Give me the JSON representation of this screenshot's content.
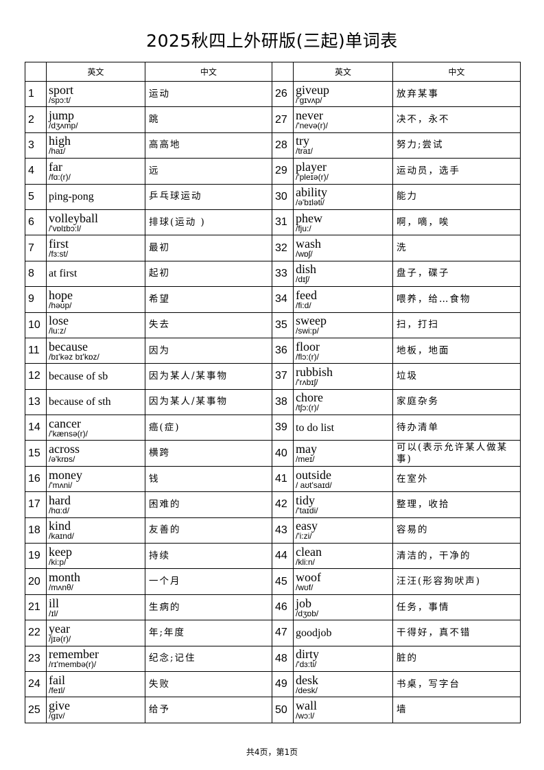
{
  "title": "2025秋四上外研版(三起)单词表",
  "headers": {
    "en": "英文",
    "cn": "中文"
  },
  "words": [
    {
      "n": "1",
      "w": "sport",
      "p": "/spɔ:t/",
      "c": "运动"
    },
    {
      "n": "2",
      "w": "jump",
      "p": "/dʒʌmp/",
      "c": "跳"
    },
    {
      "n": "3",
      "w": "high",
      "p": "/haɪ/",
      "c": "高高地"
    },
    {
      "n": "4",
      "w": "far",
      "p": "/fɑ:(r)/",
      "c": "远"
    },
    {
      "n": "5",
      "w": "ping-pong",
      "p": "",
      "c": "乒乓球运动"
    },
    {
      "n": "6",
      "w": "volleyball",
      "p": "/'vɒlɪbɔ:l/",
      "c": "排球(运动 )"
    },
    {
      "n": "7",
      "w": "first",
      "p": "/fɜ:st/",
      "c": "最初"
    },
    {
      "n": "8",
      "w": "at first",
      "p": "",
      "c": "起初"
    },
    {
      "n": "9",
      "w": "hope",
      "p": "/həʊp/",
      "c": "希望"
    },
    {
      "n": "10",
      "w": "lose",
      "p": "/lu:z/",
      "c": "失去"
    },
    {
      "n": "11",
      "w": "because",
      "p": "/bɪ'kəz bɪ'kɒz/",
      "c": "因为"
    },
    {
      "n": "12",
      "w": "because of sb",
      "p": "",
      "c": "因为某人/某事物"
    },
    {
      "n": "13",
      "w": "because of sth",
      "p": "",
      "c": "因为某人/某事物"
    },
    {
      "n": "14",
      "w": "cancer",
      "p": "/'kænsə(r)/",
      "c": "癌(症)"
    },
    {
      "n": "15",
      "w": "across",
      "p": "/ə'krɒs/",
      "c": "横跨"
    },
    {
      "n": "16",
      "w": "money",
      "p": "/'mʌni/",
      "c": "钱"
    },
    {
      "n": "17",
      "w": "hard",
      "p": "/hɑ:d/",
      "c": "困难的"
    },
    {
      "n": "18",
      "w": "kind",
      "p": "/kaɪnd/",
      "c": "友善的"
    },
    {
      "n": "19",
      "w": "keep",
      "p": "/ki:p/",
      "c": "持续"
    },
    {
      "n": "20",
      "w": "month",
      "p": "/mʌnθ/",
      "c": "一个月"
    },
    {
      "n": "21",
      "w": "ill",
      "p": "/ɪl/",
      "c": "生病的"
    },
    {
      "n": "22",
      "w": "year",
      "p": "/jɪə(r)/",
      "c": "年;年度"
    },
    {
      "n": "23",
      "w": "remember",
      "p": "/rɪ'membə(r)/",
      "c": "纪念;记住"
    },
    {
      "n": "24",
      "w": "fail",
      "p": "/feɪl/",
      "c": "失败"
    },
    {
      "n": "25",
      "w": "give",
      "p": "/gɪv/",
      "c": "给予"
    },
    {
      "n": "26",
      "w": "giveup",
      "p": "/'gɪvʌp/",
      "c": "放弃某事"
    },
    {
      "n": "27",
      "w": "never",
      "p": "/'nevə(r)/",
      "c": "决不，永不"
    },
    {
      "n": "28",
      "w": "try",
      "p": "/traɪ/",
      "c": "努力;尝试"
    },
    {
      "n": "29",
      "w": "player",
      "p": "/'pleɪə(r)/",
      "c": "运动员，选手"
    },
    {
      "n": "30",
      "w": "ability",
      "p": "/ə'bɪləti/",
      "c": "能力"
    },
    {
      "n": "31",
      "w": "phew",
      "p": "/fju:/",
      "c": "啊，嘀，唉"
    },
    {
      "n": "32",
      "w": "wash",
      "p": "/wɒʃ/",
      "c": "洗"
    },
    {
      "n": "33",
      "w": "dish",
      "p": "/dɪʃ/",
      "c": "盘子，碟子"
    },
    {
      "n": "34",
      "w": "feed",
      "p": "/fi:d/",
      "c": "喂养，给…食物"
    },
    {
      "n": "35",
      "w": "sweep",
      "p": "/swi:p/",
      "c": "扫，打扫"
    },
    {
      "n": "36",
      "w": "floor",
      "p": "/flɔ:(r)/",
      "c": "地板，地面"
    },
    {
      "n": "37",
      "w": "rubbish",
      "p": "/'rʌbɪʃ/",
      "c": "垃圾"
    },
    {
      "n": "38",
      "w": "chore",
      "p": "/tʃɔ:(r)/",
      "c": "家庭杂务"
    },
    {
      "n": "39",
      "w": "to do list",
      "p": "",
      "c": "待办清单"
    },
    {
      "n": "40",
      "w": "may",
      "p": "/meɪ/",
      "c": "可以(表示允许某人做某事)"
    },
    {
      "n": "41",
      "w": "outside",
      "p": "/ aʊt'saɪd/",
      "c": "在室外"
    },
    {
      "n": "42",
      "w": "tidy",
      "p": "/'taɪdi/",
      "c": "整理，收拾"
    },
    {
      "n": "43",
      "w": "easy",
      "p": "/'i:zi/",
      "c": "容易的"
    },
    {
      "n": "44",
      "w": "clean",
      "p": "/kli:n/",
      "c": "清洁的，干净的"
    },
    {
      "n": "45",
      "w": "woof",
      "p": "/wʊf/",
      "c": "汪汪(形容狗吠声)"
    },
    {
      "n": "46",
      "w": "job",
      "p": "/dʒɒb/",
      "c": "任务，事情"
    },
    {
      "n": "47",
      "w": "goodjob",
      "p": "",
      "c": "干得好，真不错"
    },
    {
      "n": "48",
      "w": "dirty",
      "p": "/'dɜ:ti/",
      "c": "脏的"
    },
    {
      "n": "49",
      "w": "desk",
      "p": "/desk/",
      "c": "书桌，写字台"
    },
    {
      "n": "50",
      "w": "wall",
      "p": "/wɔ:l/",
      "c": "墙"
    }
  ],
  "footer": "共4页，第1页"
}
